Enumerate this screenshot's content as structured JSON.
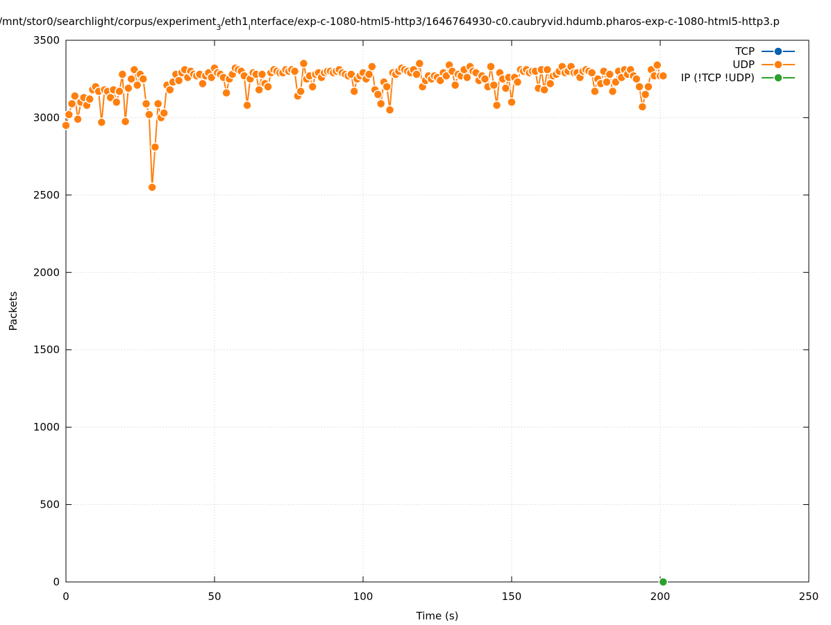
{
  "chart_data": {
    "type": "line",
    "title_parts": [
      "/mnt/stor0/searchlight/corpus/experiment",
      "3",
      "/eth1",
      "i",
      "nterface/exp-c-1080-html5-http3/1646764930-c0.caubryvid.hdumb.pharos-exp-c-1080-html5-http3.p"
    ],
    "xlabel": "Time (s)",
    "ylabel": "Packets",
    "xlim": [
      0,
      250
    ],
    "xticks": [
      0,
      50,
      100,
      150,
      200,
      250
    ],
    "ylim": [
      0,
      3500
    ],
    "yticks": [
      0,
      500,
      1000,
      1500,
      2000,
      2500,
      3000,
      3500
    ],
    "grid": true,
    "legend": "top-right",
    "series": [
      {
        "name": "TCP",
        "color": "#0060ad",
        "x": [],
        "values": []
      },
      {
        "name": "UDP",
        "color": "#ff7f0e",
        "x": [
          0,
          1,
          2,
          3,
          4,
          5,
          6,
          7,
          8,
          9,
          10,
          11,
          12,
          13,
          14,
          15,
          16,
          17,
          18,
          19,
          20,
          21,
          22,
          23,
          24,
          25,
          26,
          27,
          28,
          29,
          30,
          31,
          32,
          33,
          34,
          35,
          36,
          37,
          38,
          39,
          40,
          41,
          42,
          43,
          44,
          45,
          46,
          47,
          48,
          49,
          50,
          51,
          52,
          53,
          54,
          55,
          56,
          57,
          58,
          59,
          60,
          61,
          62,
          63,
          64,
          65,
          66,
          67,
          68,
          69,
          70,
          71,
          72,
          73,
          74,
          75,
          76,
          77,
          78,
          79,
          80,
          81,
          82,
          83,
          84,
          85,
          86,
          87,
          88,
          89,
          90,
          91,
          92,
          93,
          94,
          95,
          96,
          97,
          98,
          99,
          100,
          101,
          102,
          103,
          104,
          105,
          106,
          107,
          108,
          109,
          110,
          111,
          112,
          113,
          114,
          115,
          116,
          117,
          118,
          119,
          120,
          121,
          122,
          123,
          124,
          125,
          126,
          127,
          128,
          129,
          130,
          131,
          132,
          133,
          134,
          135,
          136,
          137,
          138,
          139,
          140,
          141,
          142,
          143,
          144,
          145,
          146,
          147,
          148,
          149,
          150,
          151,
          152,
          153,
          154,
          155,
          156,
          157,
          158,
          159,
          160,
          161,
          162,
          163,
          164,
          165,
          166,
          167,
          168,
          169,
          170,
          171,
          172,
          173,
          174,
          175,
          176,
          177,
          178,
          179,
          180,
          181,
          182,
          183,
          184,
          185,
          186,
          187,
          188,
          189,
          190,
          191,
          192,
          193,
          194,
          195,
          196,
          197,
          198,
          199,
          200,
          201
        ],
        "values": [
          2950,
          3020,
          3090,
          3140,
          2990,
          3100,
          3130,
          3080,
          3120,
          3180,
          3200,
          3170,
          2970,
          3180,
          3170,
          3130,
          3180,
          3100,
          3170,
          3280,
          2975,
          3190,
          3250,
          3310,
          3210,
          3280,
          3250,
          3090,
          3020,
          2550,
          2810,
          3090,
          3000,
          3030,
          3210,
          3180,
          3230,
          3280,
          3240,
          3290,
          3310,
          3260,
          3300,
          3280,
          3270,
          3280,
          3220,
          3270,
          3290,
          3260,
          3320,
          3290,
          3280,
          3260,
          3160,
          3250,
          3280,
          3320,
          3310,
          3300,
          3270,
          3080,
          3250,
          3290,
          3280,
          3180,
          3280,
          3220,
          3200,
          3290,
          3310,
          3300,
          3290,
          3290,
          3310,
          3300,
          3310,
          3300,
          3140,
          3170,
          3350,
          3250,
          3270,
          3200,
          3280,
          3290,
          3260,
          3290,
          3300,
          3300,
          3290,
          3300,
          3310,
          3290,
          3280,
          3270,
          3280,
          3170,
          3250,
          3270,
          3290,
          3250,
          3280,
          3330,
          3180,
          3150,
          3090,
          3230,
          3200,
          3050,
          3290,
          3280,
          3300,
          3320,
          3310,
          3300,
          3290,
          3310,
          3280,
          3350,
          3200,
          3240,
          3270,
          3250,
          3270,
          3260,
          3240,
          3290,
          3270,
          3340,
          3300,
          3210,
          3280,
          3270,
          3310,
          3260,
          3330,
          3300,
          3290,
          3240,
          3270,
          3250,
          3200,
          3330,
          3210,
          3080,
          3290,
          3250,
          3190,
          3260,
          3100,
          3260,
          3230,
          3310,
          3300,
          3310,
          3290,
          3300,
          3300,
          3190,
          3310,
          3180,
          3310,
          3220,
          3270,
          3280,
          3300,
          3330,
          3290,
          3300,
          3330,
          3290,
          3290,
          3260,
          3300,
          3310,
          3300,
          3290,
          3170,
          3250,
          3220,
          3300,
          3230,
          3280,
          3170,
          3230,
          3300,
          3260,
          3310,
          3280,
          3310,
          3270,
          3250,
          3200,
          3070,
          3150,
          3200,
          3310,
          3270,
          3340,
          3270,
          3270
        ]
      },
      {
        "name": "IP (!TCP  !UDP)",
        "color": "#2ca02c",
        "x": [
          201
        ],
        "values": [
          0
        ]
      }
    ]
  }
}
